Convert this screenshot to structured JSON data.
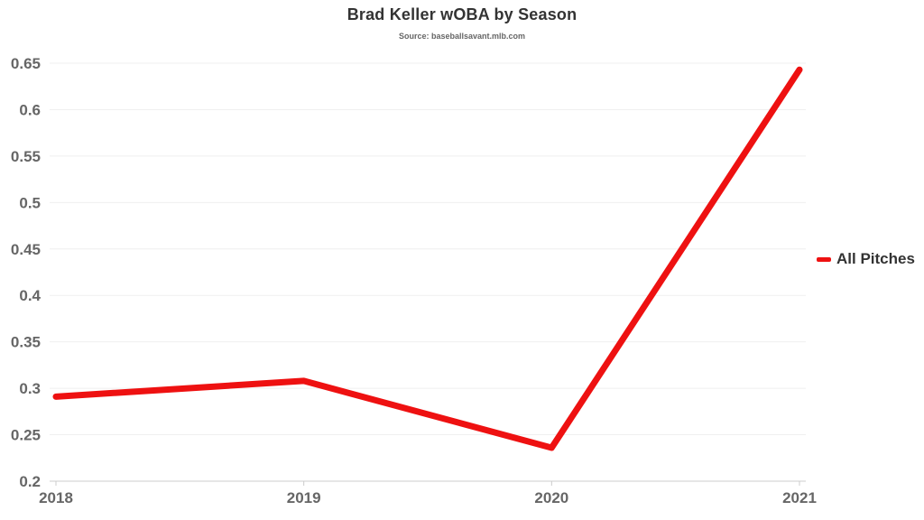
{
  "header": {
    "title": "Brad Keller wOBA by Season",
    "subtitle": "Source: baseballsavant.mlb.com"
  },
  "legend": {
    "label": "All Pitches"
  },
  "colors": {
    "series_red": "#ee1111",
    "title_text": "#333333",
    "axis_label_text": "#666666",
    "gridline": "#efefef",
    "axis_line": "#cccccc",
    "background": "#ffffff"
  },
  "chart_data": {
    "type": "line",
    "title": "Brad Keller wOBA by Season",
    "subtitle": "Source: baseballsavant.mlb.com",
    "categories": [
      "2018",
      "2019",
      "2020",
      "2021"
    ],
    "series": [
      {
        "name": "All Pitches",
        "color": "#ee1111",
        "values": [
          0.291,
          0.308,
          0.236,
          0.643
        ]
      }
    ],
    "xlabel": "",
    "ylabel": "",
    "ylim": [
      0.2,
      0.65
    ],
    "yticks": [
      0.2,
      0.25,
      0.3,
      0.35,
      0.4,
      0.45,
      0.5,
      0.55,
      0.6,
      0.65
    ],
    "grid": true,
    "legend_position": "right"
  }
}
